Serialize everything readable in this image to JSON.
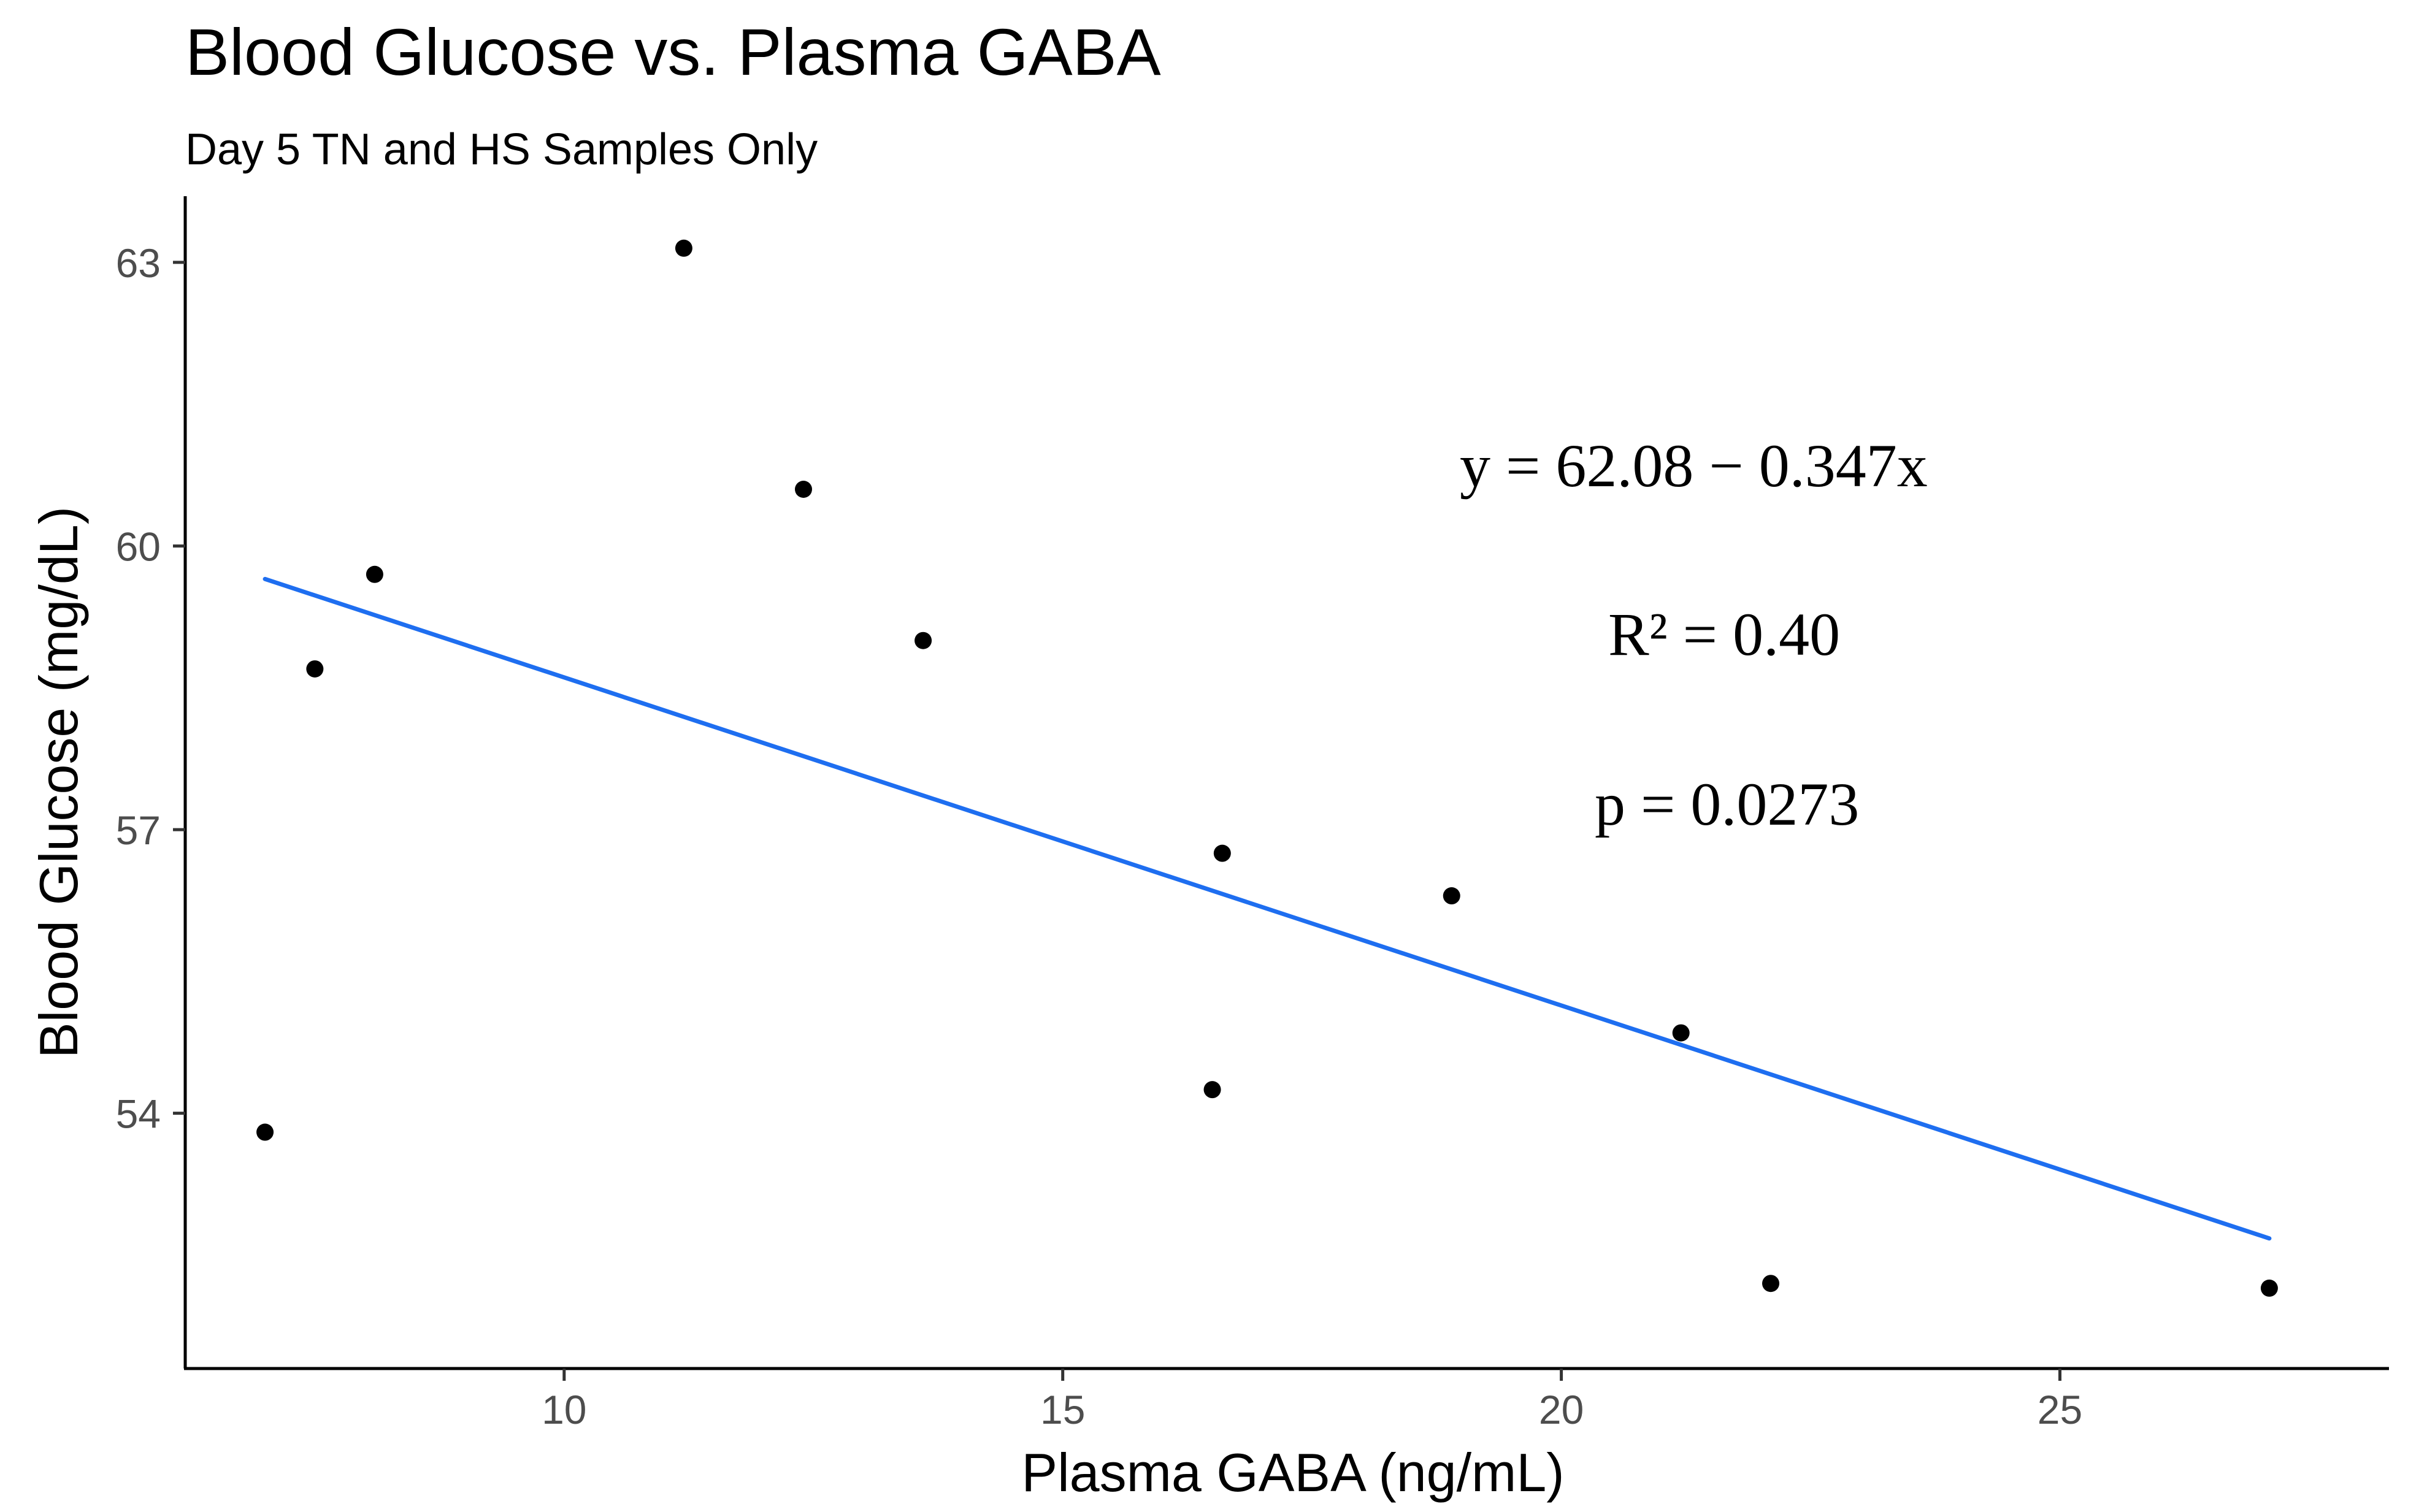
{
  "chart_data": {
    "type": "scatter",
    "title": "Blood Glucose vs. Plasma GABA",
    "subtitle": "Day 5 TN and HS Samples Only",
    "xlabel": "Plasma GABA (ng/mL)",
    "ylabel": "Blood Glucose (mg/dL)",
    "xlim": [
      6.2,
      28.3
    ],
    "ylim": [
      51.3,
      63.7
    ],
    "xticks": [
      10,
      15,
      20,
      25
    ],
    "yticks": [
      54,
      57,
      60,
      63
    ],
    "grid": false,
    "points": [
      {
        "x": 7.0,
        "y": 53.8
      },
      {
        "x": 7.5,
        "y": 58.7
      },
      {
        "x": 8.1,
        "y": 59.7
      },
      {
        "x": 11.2,
        "y": 63.15
      },
      {
        "x": 12.4,
        "y": 60.6
      },
      {
        "x": 13.6,
        "y": 59.0
      },
      {
        "x": 16.5,
        "y": 54.25
      },
      {
        "x": 16.6,
        "y": 56.75
      },
      {
        "x": 18.9,
        "y": 56.3
      },
      {
        "x": 21.2,
        "y": 54.85
      },
      {
        "x": 22.1,
        "y": 52.2
      },
      {
        "x": 27.1,
        "y": 52.15
      }
    ],
    "fit": {
      "type": "linear",
      "intercept": 62.08,
      "slope": -0.347,
      "x_range": [
        7.0,
        27.1
      ],
      "color": "#1E6EF0"
    },
    "annotations": {
      "equation": "y = 62.08 − 0.347x",
      "r_squared": "R² = 0.40",
      "p_value": "p = 0.0273"
    },
    "colors": {
      "points": "#000000",
      "fit_line": "#1E6EF0",
      "axis": "#000000",
      "tick_labels": "#4D4D4D"
    }
  }
}
